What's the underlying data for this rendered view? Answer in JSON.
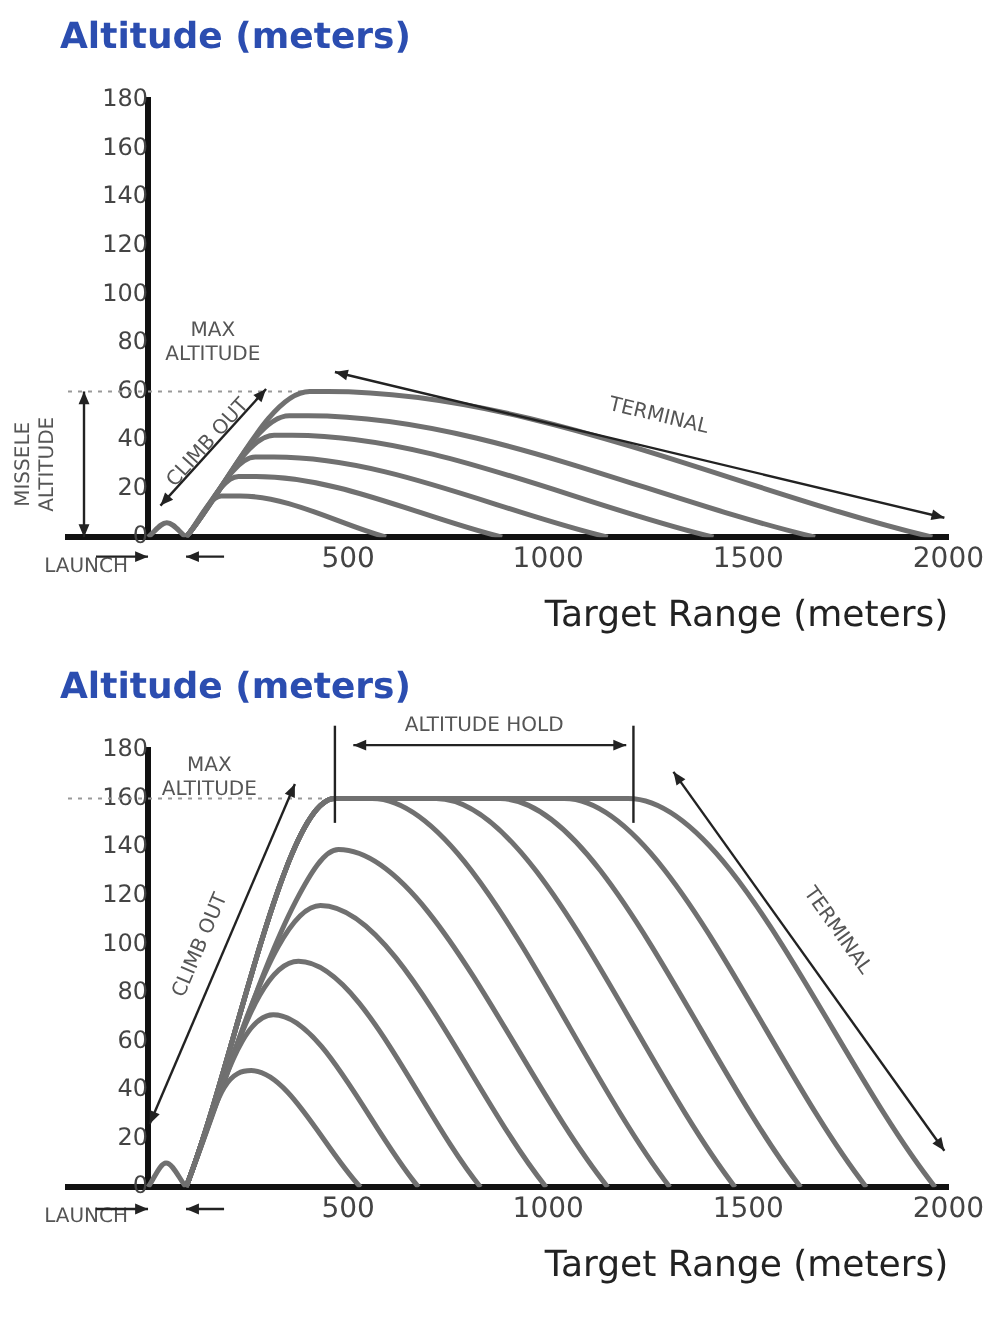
{
  "chart_data": [
    {
      "type": "line",
      "ylabel": "Altitude (meters)",
      "xlabel": "Target Range (meters)",
      "xlim": [
        -200,
        2000
      ],
      "xticks": [
        500,
        1000,
        1500,
        2000
      ],
      "ylim": [
        0,
        180
      ],
      "yticks": [
        0,
        20,
        40,
        60,
        80,
        100,
        120,
        140,
        160,
        180
      ],
      "legend": false,
      "marker": "none",
      "series": [
        {
          "color": "#707070",
          "x": [
            0,
            47,
            95
          ],
          "values": [
            0,
            6,
            0
          ]
        },
        {
          "color": "#707070",
          "x": [
            95,
            183,
            230,
            595
          ],
          "values": [
            0,
            17,
            17,
            0
          ]
        },
        {
          "color": "#707070",
          "x": [
            95,
            226,
            270,
            885
          ],
          "values": [
            0,
            25,
            25,
            0
          ]
        },
        {
          "color": "#707070",
          "x": [
            95,
            268,
            315,
            1149
          ],
          "values": [
            0,
            33,
            33,
            0
          ]
        },
        {
          "color": "#707070",
          "x": [
            95,
            315,
            360,
            1413
          ],
          "values": [
            0,
            42,
            42,
            0
          ]
        },
        {
          "color": "#707070",
          "x": [
            95,
            353,
            400,
            1667
          ],
          "values": [
            0,
            50,
            50,
            0
          ]
        },
        {
          "color": "#707070",
          "x": [
            95,
            404,
            450,
            1960
          ],
          "values": [
            0,
            60,
            60,
            0
          ]
        }
      ],
      "ref_lines": [
        {
          "axis": "y",
          "value": 60,
          "line_style": "dotted",
          "color": "#999999"
        }
      ],
      "annotations": [
        "MAX ALTITUDE",
        "CLIMB OUT",
        "TERMINAL",
        "MISSELE ALTITUDE",
        {
          "text": "LAUNCH",
          "x": 0,
          "y": 0
        }
      ]
    },
    {
      "type": "line",
      "ylabel": "Altitude (meters)",
      "xlabel": "Target Range (meters)",
      "xlim": [
        -200,
        2000
      ],
      "xticks": [
        500,
        1000,
        1500,
        2000
      ],
      "ylim": [
        0,
        180
      ],
      "yticks": [
        0,
        20,
        40,
        60,
        80,
        100,
        120,
        140,
        160,
        180
      ],
      "legend": false,
      "marker": "none",
      "series": [
        {
          "color": "#707070",
          "x": [
            0,
            45,
            95
          ],
          "values": [
            0,
            10,
            0
          ]
        },
        {
          "color": "#707070",
          "x": [
            95,
            190,
            258,
            531
          ],
          "values": [
            0,
            41,
            48,
            0
          ]
        },
        {
          "color": "#707070",
          "x": [
            95,
            235,
            313,
            676
          ],
          "values": [
            0,
            60,
            71,
            0
          ]
        },
        {
          "color": "#707070",
          "x": [
            95,
            279,
            376,
            831
          ],
          "values": [
            0,
            79,
            93,
            0
          ]
        },
        {
          "color": "#707070",
          "x": [
            95,
            325,
            431,
            995
          ],
          "values": [
            0,
            99,
            116,
            0
          ]
        },
        {
          "color": "#707070",
          "x": [
            95,
            370,
            476,
            1149
          ],
          "values": [
            0,
            118,
            139,
            0
          ]
        },
        {
          "color": "#707070",
          "x": [
            95,
            467,
            560,
            1304
          ],
          "values": [
            0,
            160,
            160,
            0
          ]
        },
        {
          "color": "#707070",
          "x": [
            95,
            467,
            720,
            1467
          ],
          "values": [
            0,
            160,
            160,
            0
          ]
        },
        {
          "color": "#707070",
          "x": [
            95,
            467,
            880,
            1631
          ],
          "values": [
            0,
            160,
            160,
            0
          ]
        },
        {
          "color": "#707070",
          "x": [
            95,
            467,
            1040,
            1795
          ],
          "values": [
            0,
            160,
            160,
            0
          ]
        },
        {
          "color": "#707070",
          "x": [
            95,
            467,
            1200,
            1967
          ],
          "values": [
            0,
            160,
            160,
            0
          ]
        }
      ],
      "ref_lines": [
        {
          "axis": "y",
          "value": 160,
          "line_style": "dotted",
          "color": "#999999"
        }
      ],
      "annotations": [
        "MAX ALTITUDE",
        "ALTITUDE HOLD",
        "CLIMB OUT",
        "TERMINAL",
        {
          "text": "LAUNCH",
          "x": 0,
          "y": 0
        }
      ]
    }
  ]
}
